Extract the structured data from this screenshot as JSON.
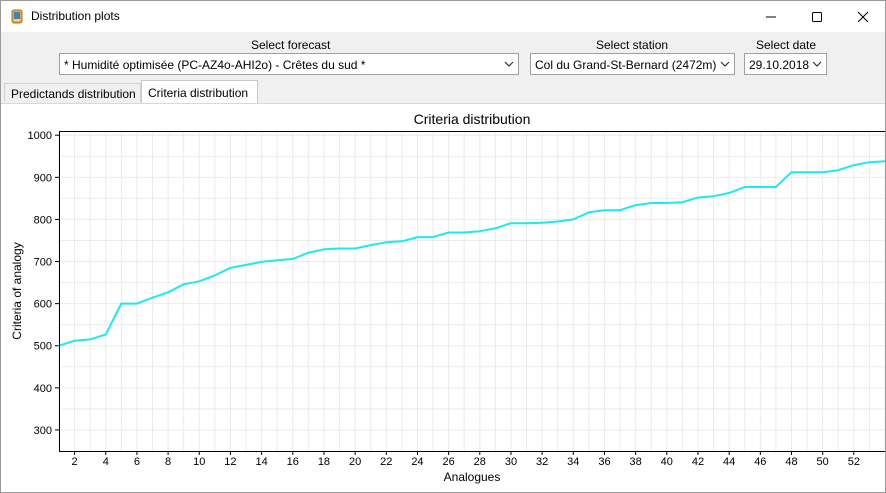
{
  "window": {
    "title": "Distribution plots"
  },
  "selectors": {
    "forecast": {
      "label": "Select forecast",
      "value": "* Humidité optimisée (PC-AZ4o-AHI2o) - Crêtes du sud *"
    },
    "station": {
      "label": "Select station",
      "value": "Col du Grand-St-Bernard (2472m)"
    },
    "date": {
      "label": "Select date",
      "value": "29.10.2018"
    }
  },
  "tabs": [
    {
      "label": "Predictands distribution",
      "active": false
    },
    {
      "label": "Criteria distribution",
      "active": true
    }
  ],
  "colors": {
    "line": "#1de9ef",
    "grid": "#ebebeb"
  },
  "chart_data": {
    "type": "line",
    "title": "Criteria distribution",
    "xlabel": "Analogues",
    "ylabel": "Criteria of analogy",
    "xlim": [
      1,
      54
    ],
    "ylim": [
      250,
      1010
    ],
    "x_ticks": [
      2,
      4,
      6,
      8,
      10,
      12,
      14,
      16,
      18,
      20,
      22,
      24,
      26,
      28,
      30,
      32,
      34,
      36,
      38,
      40,
      42,
      44,
      46,
      48,
      50,
      52
    ],
    "y_ticks": [
      300,
      400,
      500,
      600,
      700,
      800,
      900,
      1000
    ],
    "grid": true,
    "series": [
      {
        "x": [
          1,
          2,
          3,
          4,
          5,
          6,
          7,
          8,
          9,
          10,
          11,
          12,
          13,
          14,
          15,
          16,
          17,
          18,
          19,
          20,
          21,
          22,
          23,
          24,
          25,
          26,
          27,
          28,
          29,
          30,
          31,
          32,
          33,
          34,
          35,
          36,
          37,
          38,
          39,
          40,
          41,
          42,
          43,
          44,
          45,
          46,
          47,
          48,
          49,
          50,
          51,
          52,
          53,
          54
        ],
        "values": [
          500,
          512,
          515,
          527,
          600,
          600,
          614,
          627,
          646,
          653,
          667,
          685,
          692,
          699,
          703,
          706,
          721,
          729,
          731,
          731,
          739,
          746,
          748,
          758,
          758,
          769,
          769,
          772,
          779,
          791,
          791,
          792,
          795,
          800,
          817,
          822,
          822,
          834,
          839,
          839,
          841,
          852,
          855,
          863,
          877,
          877,
          877,
          912,
          912,
          912,
          917,
          929,
          936,
          938
        ]
      }
    ]
  }
}
